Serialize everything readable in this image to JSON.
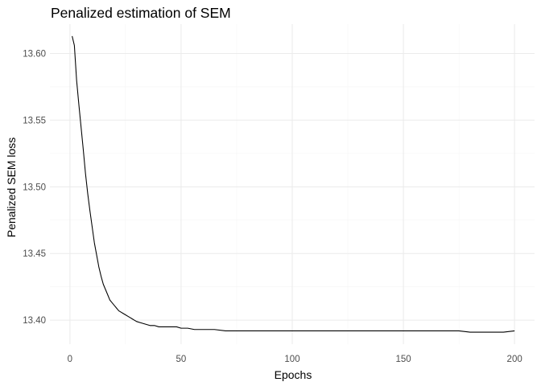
{
  "chart_data": {
    "type": "line",
    "title": "Penalized estimation of SEM",
    "xlabel": "Epochs",
    "ylabel": "Penalized SEM loss",
    "xlim": [
      -9,
      209
    ],
    "ylim": [
      13.382,
      13.622
    ],
    "x_ticks": [
      0,
      50,
      100,
      150,
      200
    ],
    "x_tick_labels": [
      "0",
      "50",
      "100",
      "150",
      "200"
    ],
    "y_ticks": [
      13.4,
      13.45,
      13.5,
      13.55,
      13.6
    ],
    "y_tick_labels": [
      "13.40",
      "13.45",
      "13.50",
      "13.55",
      "13.60"
    ],
    "grid": true,
    "legend": "none",
    "line_color": "#000000",
    "series": [
      {
        "x": [
          1,
          2,
          3,
          4,
          5,
          6,
          7,
          8,
          9,
          10,
          11,
          12,
          13,
          14,
          15,
          16,
          17,
          18,
          19,
          20,
          21,
          22,
          23,
          24,
          25,
          26,
          27,
          28,
          29,
          30,
          32,
          34,
          36,
          38,
          40,
          42,
          44,
          46,
          48,
          50,
          53,
          56,
          60,
          65,
          70,
          75,
          80,
          85,
          90,
          95,
          100,
          105,
          110,
          115,
          120,
          125,
          130,
          135,
          140,
          145,
          150,
          155,
          160,
          165,
          170,
          175,
          180,
          185,
          190,
          195,
          200
        ],
        "y": [
          13.613,
          13.606,
          13.58,
          13.562,
          13.545,
          13.528,
          13.51,
          13.495,
          13.482,
          13.47,
          13.458,
          13.449,
          13.44,
          13.433,
          13.427,
          13.423,
          13.419,
          13.415,
          13.413,
          13.411,
          13.409,
          13.407,
          13.406,
          13.405,
          13.404,
          13.403,
          13.402,
          13.401,
          13.4,
          13.399,
          13.398,
          13.397,
          13.396,
          13.396,
          13.395,
          13.395,
          13.395,
          13.395,
          13.395,
          13.394,
          13.394,
          13.393,
          13.393,
          13.393,
          13.392,
          13.392,
          13.392,
          13.392,
          13.392,
          13.392,
          13.392,
          13.392,
          13.392,
          13.392,
          13.392,
          13.392,
          13.392,
          13.392,
          13.392,
          13.392,
          13.392,
          13.392,
          13.392,
          13.392,
          13.392,
          13.392,
          13.391,
          13.391,
          13.391,
          13.391,
          13.392
        ]
      }
    ]
  }
}
